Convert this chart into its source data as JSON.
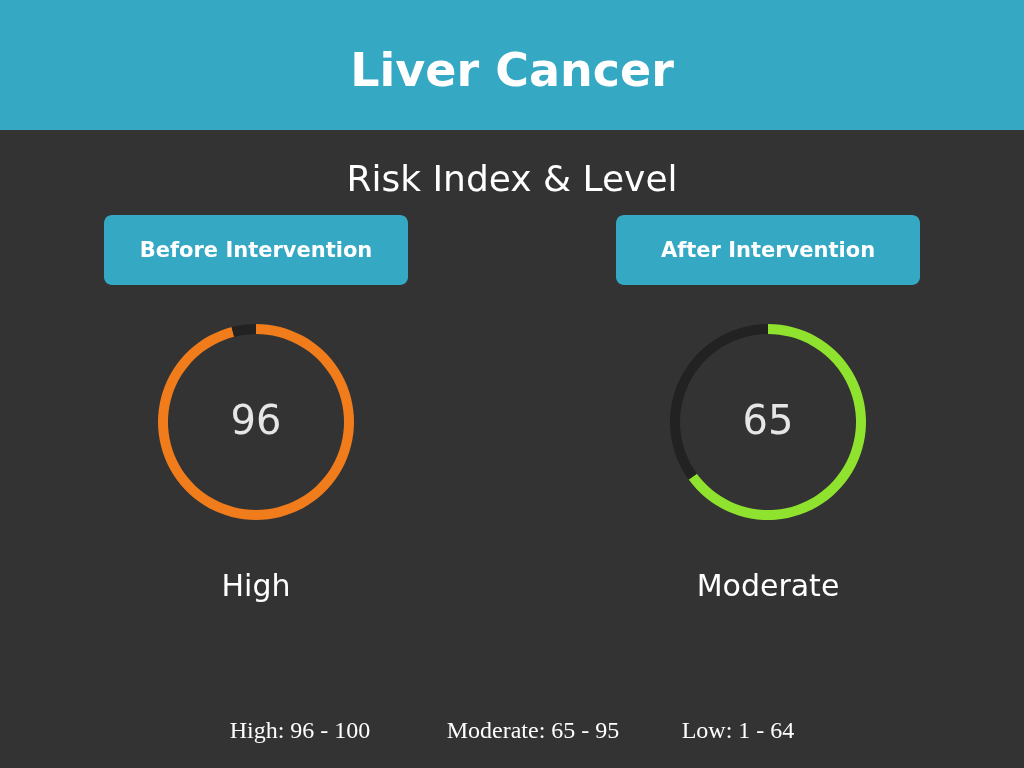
{
  "chart_data": [
    {
      "type": "other",
      "title": "Liver Cancer",
      "subtitle": "Risk Index & Level",
      "annotations": [
        "High: 96 - 100",
        "Moderate: 65 - 95",
        "Low: 1 - 64"
      ]
    },
    {
      "type": "donut",
      "title": "Before Intervention",
      "categories": [
        null,
        null
      ],
      "values": [
        96,
        4
      ],
      "colors": [
        "#f07c1c",
        "#222222"
      ],
      "value_labels": [
        "96",
        null
      ],
      "annotations": [
        "High"
      ]
    },
    {
      "type": "donut",
      "title": "After Intervention",
      "categories": [
        null,
        null
      ],
      "values": [
        65,
        35
      ],
      "colors": [
        "#8fe22e",
        "#222222"
      ],
      "value_labels": [
        "65",
        null
      ],
      "annotations": [
        "Moderate"
      ]
    }
  ]
}
